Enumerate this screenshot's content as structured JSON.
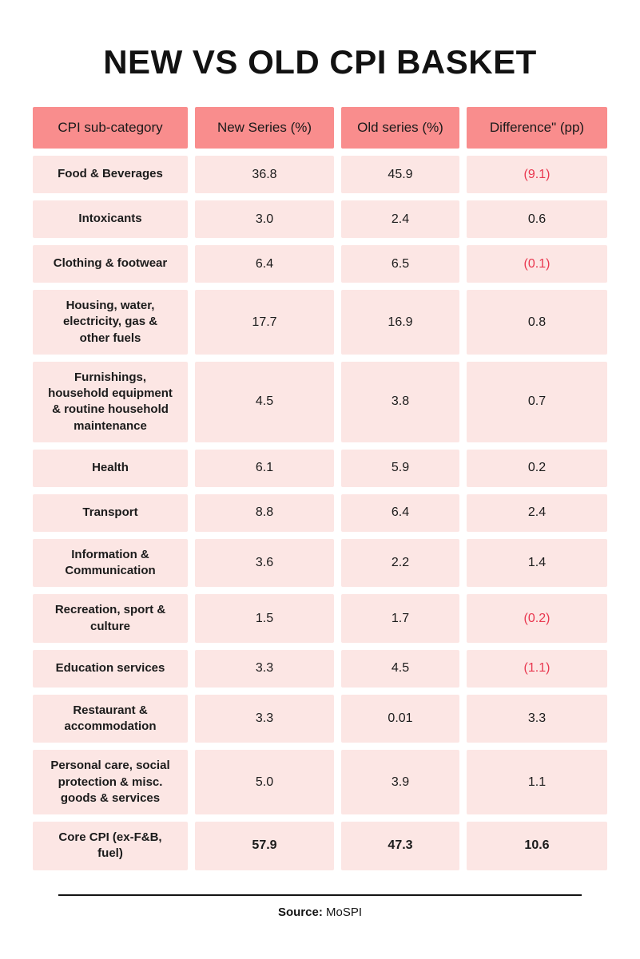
{
  "title": "NEW VS OLD CPI BASKET",
  "colors": {
    "header_bg": "#f98d8d",
    "cell_bg": "#fce6e4",
    "negative_text": "#e9374f",
    "text": "#1b1b1b"
  },
  "chart_data": {
    "type": "table",
    "title": "NEW VS OLD CPI BASKET",
    "columns": [
      "CPI sub-category",
      "New Series (%)",
      "Old series (%)",
      "Difference\" (pp)"
    ],
    "rows": [
      {
        "category": "Food & Beverages",
        "new": "36.8",
        "old": "45.9",
        "diff": "(9.1)",
        "negative": true,
        "bold": false
      },
      {
        "category": "Intoxicants",
        "new": "3.0",
        "old": "2.4",
        "diff": "0.6",
        "negative": false,
        "bold": false
      },
      {
        "category": "Clothing & footwear",
        "new": "6.4",
        "old": "6.5",
        "diff": "(0.1)",
        "negative": true,
        "bold": false
      },
      {
        "category": "Housing, water, electricity, gas & other fuels",
        "new": "17.7",
        "old": "16.9",
        "diff": "0.8",
        "negative": false,
        "bold": false
      },
      {
        "category": "Furnishings, household equipment & routine household maintenance",
        "new": "4.5",
        "old": "3.8",
        "diff": "0.7",
        "negative": false,
        "bold": false
      },
      {
        "category": "Health",
        "new": "6.1",
        "old": "5.9",
        "diff": "0.2",
        "negative": false,
        "bold": false
      },
      {
        "category": "Transport",
        "new": "8.8",
        "old": "6.4",
        "diff": "2.4",
        "negative": false,
        "bold": false
      },
      {
        "category": "Information & Communication",
        "new": "3.6",
        "old": "2.2",
        "diff": "1.4",
        "negative": false,
        "bold": false
      },
      {
        "category": "Recreation, sport & culture",
        "new": "1.5",
        "old": "1.7",
        "diff": "(0.2)",
        "negative": true,
        "bold": false
      },
      {
        "category": "Education services",
        "new": "3.3",
        "old": "4.5",
        "diff": "(1.1)",
        "negative": true,
        "bold": false
      },
      {
        "category": "Restaurant & accommodation",
        "new": "3.3",
        "old": "0.01",
        "diff": "3.3",
        "negative": false,
        "bold": false
      },
      {
        "category": "Personal care, social protection & misc. goods & services",
        "new": "5.0",
        "old": "3.9",
        "diff": "1.1",
        "negative": false,
        "bold": false
      },
      {
        "category": "Core CPI (ex-F&B, fuel)",
        "new": "57.9",
        "old": "47.3",
        "diff": "10.6",
        "negative": false,
        "bold": true
      }
    ],
    "legend_note": "Negative differences are shown in parentheses and colored red",
    "source": "MoSPI"
  },
  "footer": {
    "source_label": "Source:",
    "source_value": "MoSPI"
  }
}
